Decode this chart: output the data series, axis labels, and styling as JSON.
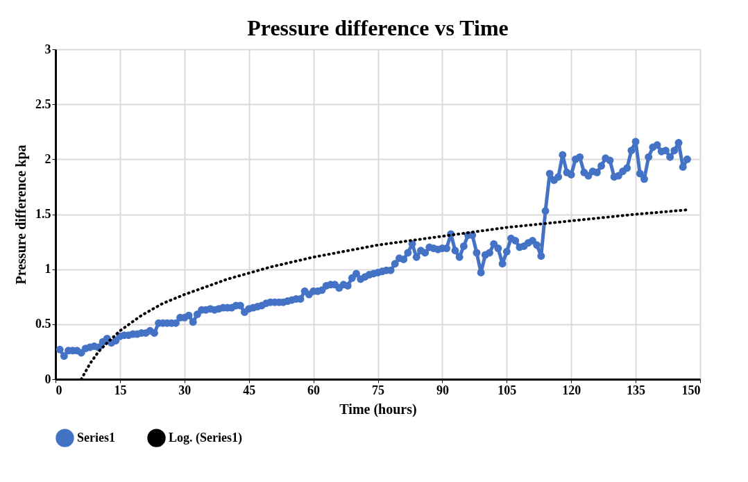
{
  "chart_data": {
    "type": "line",
    "title": "Pressure difference vs Time",
    "xlabel": "Time (hours)",
    "ylabel": "Pressure difference kpa",
    "x": [
      1,
      2,
      3,
      4,
      5,
      6,
      7,
      8,
      9,
      10,
      11,
      12,
      13,
      14,
      15,
      16,
      17,
      18,
      19,
      20,
      21,
      22,
      23,
      24,
      25,
      26,
      27,
      28,
      29,
      30,
      31,
      32,
      33,
      34,
      35,
      36,
      37,
      38,
      39,
      40,
      41,
      42,
      43,
      44,
      45,
      46,
      47,
      48,
      49,
      50,
      51,
      52,
      53,
      54,
      55,
      56,
      57,
      58,
      59,
      60,
      61,
      62,
      63,
      64,
      65,
      66,
      67,
      68,
      69,
      70,
      71,
      72,
      73,
      74,
      75,
      76,
      77,
      78,
      79,
      80,
      81,
      82,
      83,
      84,
      85,
      86,
      87,
      88,
      89,
      90,
      91,
      92,
      93,
      94,
      95,
      96,
      97,
      98,
      99,
      100,
      101,
      102,
      103,
      104,
      105,
      106,
      107,
      108,
      109,
      110,
      111,
      112,
      113,
      114,
      115,
      116,
      117,
      118,
      119,
      120,
      121,
      122,
      123,
      124,
      125,
      126,
      127,
      128,
      129,
      130,
      131,
      132,
      133,
      134,
      135,
      136,
      137,
      138,
      139,
      140,
      141,
      142,
      143,
      144,
      145,
      146,
      147
    ],
    "series": [
      {
        "name": "Series1",
        "color": "#4472c4",
        "marker": "circle",
        "line_style": "solid",
        "values": [
          0.27,
          0.21,
          0.26,
          0.26,
          0.26,
          0.24,
          0.28,
          0.29,
          0.3,
          0.29,
          0.34,
          0.37,
          0.33,
          0.35,
          0.39,
          0.4,
          0.4,
          0.41,
          0.41,
          0.42,
          0.42,
          0.44,
          0.42,
          0.51,
          0.51,
          0.51,
          0.51,
          0.51,
          0.56,
          0.56,
          0.58,
          0.52,
          0.59,
          0.63,
          0.63,
          0.64,
          0.63,
          0.64,
          0.65,
          0.65,
          0.65,
          0.67,
          0.67,
          0.61,
          0.64,
          0.65,
          0.66,
          0.67,
          0.69,
          0.7,
          0.7,
          0.7,
          0.7,
          0.71,
          0.72,
          0.73,
          0.73,
          0.8,
          0.77,
          0.8,
          0.8,
          0.81,
          0.85,
          0.86,
          0.86,
          0.83,
          0.86,
          0.85,
          0.92,
          0.96,
          0.91,
          0.93,
          0.95,
          0.96,
          0.97,
          0.98,
          0.99,
          0.99,
          1.05,
          1.1,
          1.09,
          1.15,
          1.23,
          1.11,
          1.17,
          1.15,
          1.2,
          1.19,
          1.18,
          1.19,
          1.19,
          1.32,
          1.17,
          1.11,
          1.21,
          1.31,
          1.31,
          1.15,
          0.97,
          1.13,
          1.15,
          1.23,
          1.19,
          1.05,
          1.16,
          1.28,
          1.26,
          1.2,
          1.21,
          1.24,
          1.26,
          1.22,
          1.12,
          1.53,
          1.87,
          1.81,
          1.84,
          2.04,
          1.88,
          1.86,
          2.0,
          2.02,
          1.88,
          1.85,
          1.89,
          1.88,
          1.94,
          2.01,
          1.99,
          1.84,
          1.85,
          1.89,
          1.92,
          2.08,
          2.16,
          1.87,
          1.82,
          2.02,
          2.11,
          2.13,
          2.07,
          2.08,
          2.02,
          2.08,
          2.15,
          1.93,
          2.0
        ]
      },
      {
        "name": "Log. (Series1)",
        "type": "line",
        "color": "#000000",
        "marker": "none",
        "line_style": "dotted",
        "x": [
          6,
          7,
          8,
          10,
          12,
          15,
          20,
          25,
          30,
          40,
          50,
          60,
          75,
          90,
          105,
          120,
          135,
          147
        ],
        "values": [
          0.0,
          0.07,
          0.14,
          0.25,
          0.33,
          0.44,
          0.58,
          0.69,
          0.77,
          0.91,
          1.02,
          1.11,
          1.22,
          1.3,
          1.38,
          1.44,
          1.5,
          1.54
        ]
      }
    ],
    "xlim": [
      0,
      150
    ],
    "xticks": [
      0,
      15,
      30,
      45,
      60,
      75,
      90,
      105,
      120,
      135,
      150
    ],
    "ylim": [
      0,
      3
    ],
    "yticks": [
      0,
      0.5,
      1,
      1.5,
      2,
      2.5,
      3
    ],
    "grid": true,
    "legend": "bottom"
  }
}
